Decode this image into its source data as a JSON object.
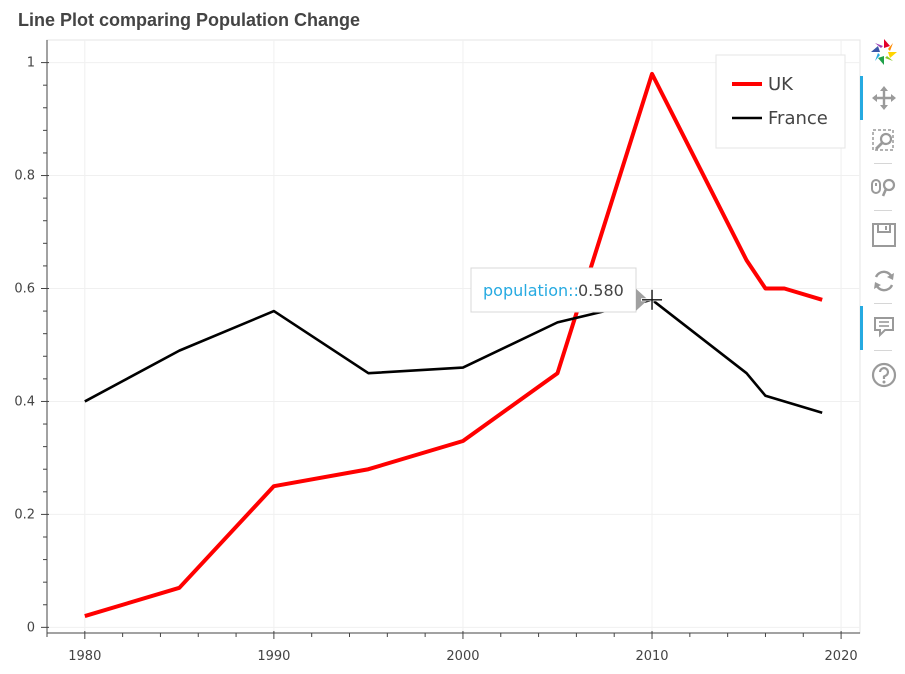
{
  "chart_data": {
    "type": "line",
    "title": "Line Plot comparing Population Change",
    "xlabel": "",
    "ylabel": "",
    "xlim": [
      1978,
      2021
    ],
    "ylim": [
      -0.01,
      1.04
    ],
    "grid": true,
    "x_ticks": [
      1980,
      1990,
      2000,
      2010,
      2020
    ],
    "x_tick_labels": [
      "1980",
      "1990",
      "2000",
      "2010",
      "2020"
    ],
    "y_ticks": [
      0,
      0.2,
      0.4,
      0.6,
      0.8,
      1
    ],
    "y_tick_labels": [
      "0",
      "0.2",
      "0.4",
      "0.6",
      "0.8",
      "1"
    ],
    "legend_position": "top-right",
    "series": [
      {
        "name": "UK",
        "color": "#ff0000",
        "x": [
          1980,
          1985,
          1990,
          1995,
          2000,
          2005,
          2010,
          2015,
          2016,
          2017,
          2019
        ],
        "y": [
          0.02,
          0.07,
          0.25,
          0.28,
          0.33,
          0.45,
          0.98,
          0.65,
          0.6,
          0.6,
          0.58
        ]
      },
      {
        "name": "France",
        "color": "#000000",
        "x": [
          1980,
          1985,
          1990,
          1995,
          2000,
          2005,
          2010,
          2015,
          2016,
          2019
        ],
        "y": [
          0.4,
          0.49,
          0.56,
          0.45,
          0.46,
          0.54,
          0.58,
          0.45,
          0.41,
          0.38
        ]
      }
    ],
    "tooltip": {
      "key": "population::",
      "value": "0.580",
      "anchor_x": 2010,
      "anchor_y": 0.58
    }
  },
  "toolbar": {
    "tools": [
      {
        "name": "bokeh-logo-icon",
        "active": false
      },
      {
        "name": "pan-tool-icon",
        "active": true
      },
      {
        "name": "box-zoom-tool-icon",
        "active": false
      },
      {
        "name": "wheel-zoom-tool-icon",
        "active": false
      },
      {
        "name": "save-tool-icon",
        "active": false
      },
      {
        "name": "reset-tool-icon",
        "active": false
      },
      {
        "name": "hover-tool-icon",
        "active": true
      },
      {
        "name": "help-tool-icon",
        "active": false
      }
    ]
  }
}
